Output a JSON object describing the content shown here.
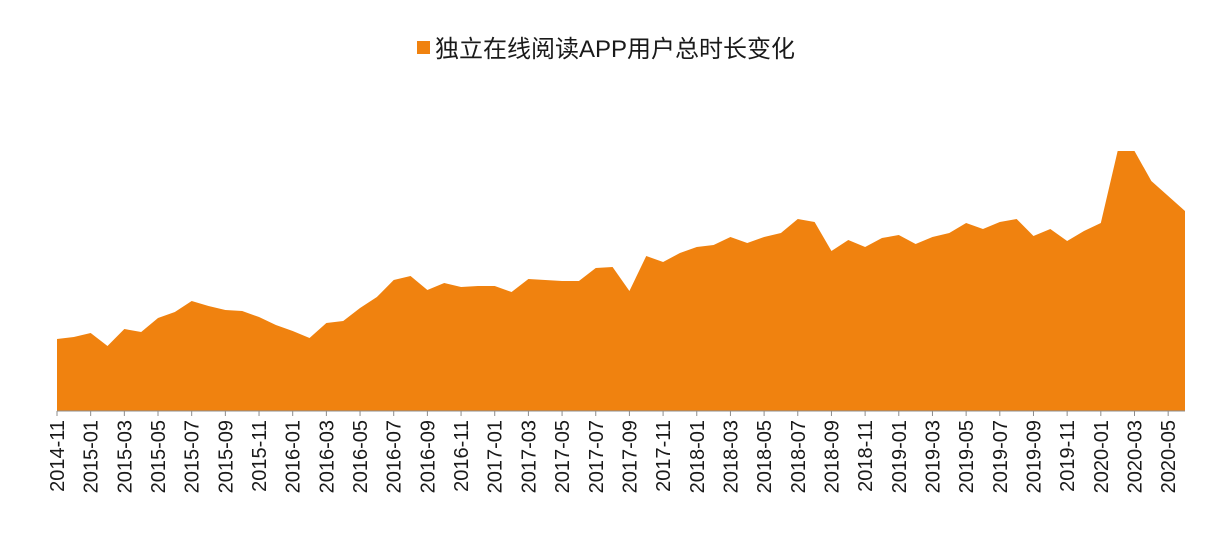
{
  "chart_data": {
    "type": "area",
    "title": "",
    "xlabel": "",
    "ylabel": "",
    "legend": {
      "position": "top-center"
    },
    "grid": false,
    "x": [
      "2014-11",
      "2014-12",
      "2015-01",
      "2015-02",
      "2015-03",
      "2015-04",
      "2015-05",
      "2015-06",
      "2015-07",
      "2015-08",
      "2015-09",
      "2015-10",
      "2015-11",
      "2015-12",
      "2016-01",
      "2016-02",
      "2016-03",
      "2016-04",
      "2016-05",
      "2016-06",
      "2016-07",
      "2016-08",
      "2016-09",
      "2016-10",
      "2016-11",
      "2016-12",
      "2017-01",
      "2017-02",
      "2017-03",
      "2017-04",
      "2017-05",
      "2017-06",
      "2017-07",
      "2017-08",
      "2017-09",
      "2017-10",
      "2017-11",
      "2017-12",
      "2018-01",
      "2018-02",
      "2018-03",
      "2018-04",
      "2018-05",
      "2018-06",
      "2018-07",
      "2018-08",
      "2018-09",
      "2018-10",
      "2018-11",
      "2018-12",
      "2019-01",
      "2019-02",
      "2019-03",
      "2019-04",
      "2019-05",
      "2019-06",
      "2019-07",
      "2019-08",
      "2019-09",
      "2019-10",
      "2019-11",
      "2019-12",
      "2020-01",
      "2020-02",
      "2020-03",
      "2020-04",
      "2020-05",
      "2020-06"
    ],
    "tick_labels": [
      "2014-11",
      "2015-01",
      "2015-03",
      "2015-05",
      "2015-07",
      "2015-09",
      "2015-11",
      "2016-01",
      "2016-03",
      "2016-05",
      "2016-07",
      "2016-09",
      "2016-11",
      "2017-01",
      "2017-03",
      "2017-05",
      "2017-07",
      "2017-09",
      "2017-11",
      "2018-01",
      "2018-03",
      "2018-05",
      "2018-07",
      "2018-09",
      "2018-11",
      "2019-01",
      "2019-03",
      "2019-05",
      "2019-07",
      "2019-09",
      "2019-11",
      "2020-01",
      "2020-03",
      "2020-05"
    ],
    "ylim": [
      0,
      300
    ],
    "series": [
      {
        "name": "独立在线阅读APP用户总时长变化",
        "color": "#F0820F",
        "values": [
          72,
          74,
          78,
          65,
          82,
          79,
          93,
          99,
          110,
          105,
          101,
          100,
          94,
          86,
          80,
          73,
          88,
          90,
          103,
          114,
          131,
          135,
          121,
          128,
          124,
          125,
          125,
          119,
          132,
          131,
          130,
          130,
          143,
          144,
          120,
          155,
          149,
          158,
          164,
          166,
          174,
          168,
          174,
          178,
          192,
          189,
          160,
          171,
          164,
          173,
          176,
          167,
          174,
          178,
          188,
          182,
          189,
          192,
          175,
          182,
          170,
          180,
          188,
          260,
          260,
          230,
          215,
          200
        ]
      }
    ]
  }
}
